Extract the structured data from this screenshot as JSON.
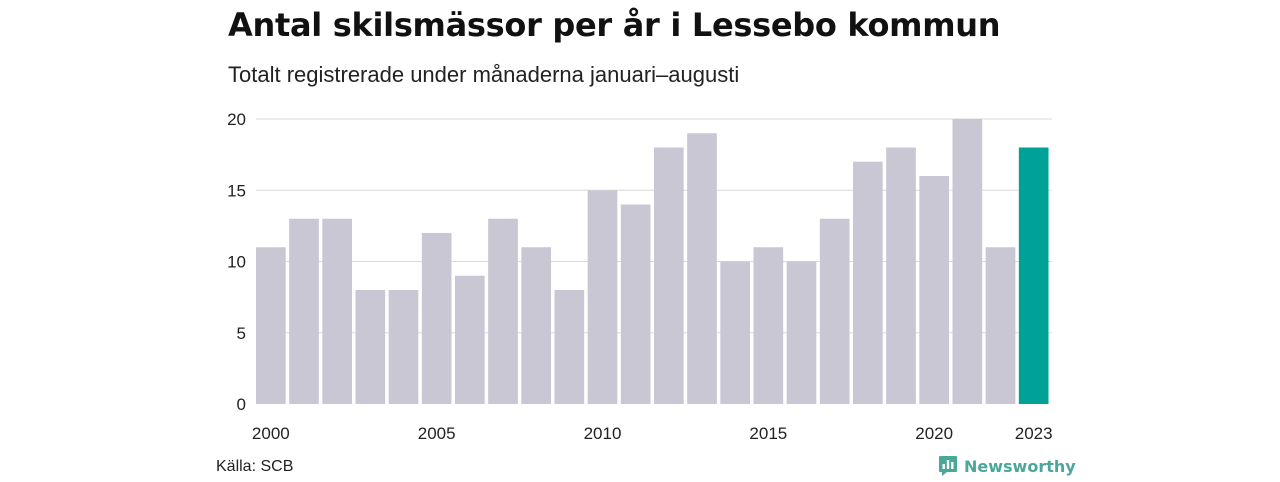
{
  "title": "Antal skilsmässor per år i Lessebo kommun",
  "subtitle": "Totalt registrerade under månaderna januari–augusti",
  "source": "Källa: SCB",
  "brand": "Newsworthy",
  "colors": {
    "bar": "#c8c7d3",
    "highlight": "#00a196",
    "grid": "#d9d9d9",
    "brand": "#4aa79a"
  },
  "chart_data": {
    "type": "bar",
    "title": "Antal skilsmässor per år i Lessebo kommun",
    "subtitle": "Totalt registrerade under månaderna januari–augusti",
    "categories": [
      "2000",
      "2001",
      "2002",
      "2003",
      "2004",
      "2005",
      "2006",
      "2007",
      "2008",
      "2009",
      "2010",
      "2011",
      "2012",
      "2013",
      "2014",
      "2015",
      "2016",
      "2017",
      "2018",
      "2019",
      "2020",
      "2021",
      "2022",
      "2023"
    ],
    "values": [
      11,
      13,
      13,
      8,
      8,
      12,
      9,
      13,
      11,
      8,
      15,
      14,
      18,
      19,
      10,
      11,
      10,
      13,
      17,
      18,
      16,
      20,
      11,
      18
    ],
    "highlight_category": "2023",
    "x_tick_labels": [
      "2000",
      "2005",
      "2010",
      "2015",
      "2020",
      "2023"
    ],
    "y_ticks": [
      0,
      5,
      10,
      15,
      20
    ],
    "ylim": [
      0,
      20
    ],
    "grid": true,
    "legend": "none"
  }
}
